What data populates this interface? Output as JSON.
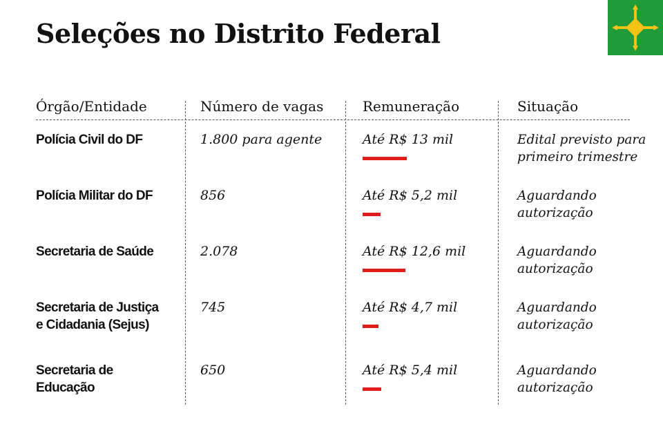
{
  "title": "Seleções no Distrito Federal",
  "colors": {
    "bar": "#e21b1b",
    "flag_green": "#1f9b3a",
    "flag_yellow": "#f4c316"
  },
  "icons": {
    "flag": "brasilia-flag-icon"
  },
  "chart_data": {
    "type": "table",
    "columns": [
      "Órgão/Entidade",
      "Número de vagas",
      "Remuneração",
      "Situação"
    ],
    "rows": [
      {
        "org": [
          "Polícia Civil do DF"
        ],
        "vacancies": "1.800 para agente",
        "pay": "Até R$ 13 mil",
        "pay_value": 13,
        "status": [
          "Edital previsto para",
          "primeiro trimestre"
        ]
      },
      {
        "org": [
          "Polícia Militar do DF"
        ],
        "vacancies": "856",
        "pay": "Até R$ 5,2 mil",
        "pay_value": 5.2,
        "status": [
          "Aguardando",
          "autorização"
        ]
      },
      {
        "org": [
          "Secretaria de Saúde"
        ],
        "vacancies": "2.078",
        "pay": "Até R$ 12,6 mil",
        "pay_value": 12.6,
        "status": [
          "Aguardando",
          "autorização"
        ]
      },
      {
        "org": [
          "Secretaria de Justiça",
          "e Cidadania (Sejus)"
        ],
        "vacancies": "745",
        "pay": "Até R$ 4,7 mil",
        "pay_value": 4.7,
        "status": [
          "Aguardando",
          "autorização"
        ]
      },
      {
        "org": [
          "Secretaria de",
          "Educação"
        ],
        "vacancies": "650",
        "pay": "Até R$ 5,4 mil",
        "pay_value": 5.4,
        "status": [
          "Aguardando",
          "autorização"
        ]
      }
    ]
  }
}
